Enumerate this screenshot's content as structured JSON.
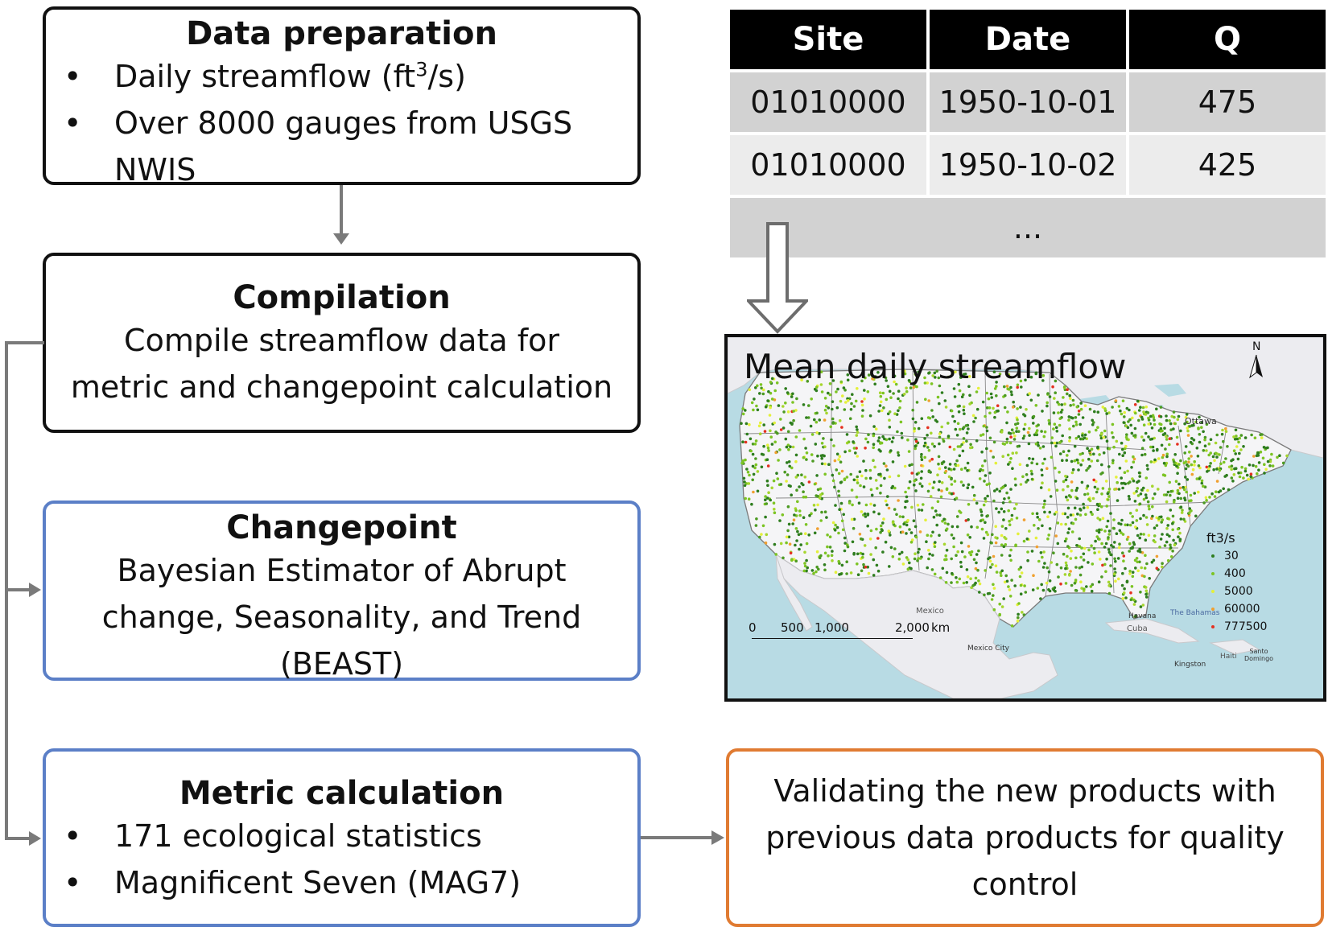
{
  "prep": {
    "title": "Data preparation",
    "bullet1_pre": "Daily streamflow (ft",
    "bullet1_sup": "3",
    "bullet1_post": "/s)",
    "bullet2_line1": "Over 8000 gauges from USGS",
    "bullet2_line2": "NWIS"
  },
  "compilation": {
    "title": "Compilation",
    "line1": "Compile streamflow data for",
    "line2": "metric and changepoint calculation"
  },
  "changepoint": {
    "title": "Changepoint",
    "line1": "Bayesian Estimator of Abrupt",
    "line2": "change, Seasonality, and Trend",
    "line3": "(BEAST)"
  },
  "metric": {
    "title": "Metric calculation",
    "bullet1": "171 ecological statistics",
    "bullet2": "Magnificent Seven (MAG7)"
  },
  "validation": {
    "line1": "Validating the new products with",
    "line2": "previous data products for quality",
    "line3": "control"
  },
  "table": {
    "headers": [
      "Site",
      "Date",
      "Q"
    ],
    "rows": [
      [
        "01010000",
        "1950-10-01",
        "475"
      ],
      [
        "01010000",
        "1950-10-02",
        "425"
      ]
    ],
    "ellipsis": "..."
  },
  "map": {
    "title": "Mean daily streamflow",
    "north": "N",
    "legend_title": "ft3/s",
    "legend": [
      {
        "label": "30",
        "color": "#2e7d1e"
      },
      {
        "label": "400",
        "color": "#7cc423"
      },
      {
        "label": "5000",
        "color": "#e4f03a"
      },
      {
        "label": "60000",
        "color": "#f0a030"
      },
      {
        "label": "777500",
        "color": "#e53020"
      }
    ],
    "scale_labels": [
      "0",
      "500",
      "1,000",
      "2,000",
      "km"
    ],
    "place_labels": {
      "ottawa": "Ottawa",
      "mexico": "Mexico",
      "havana": "Havana",
      "cuba": "Cuba",
      "bahamas": "The Bahamas",
      "mexico_city": "Mexico City",
      "kingston": "Kingston",
      "haiti": "Haiti",
      "santo_domingo": "Santo Domingo"
    }
  }
}
